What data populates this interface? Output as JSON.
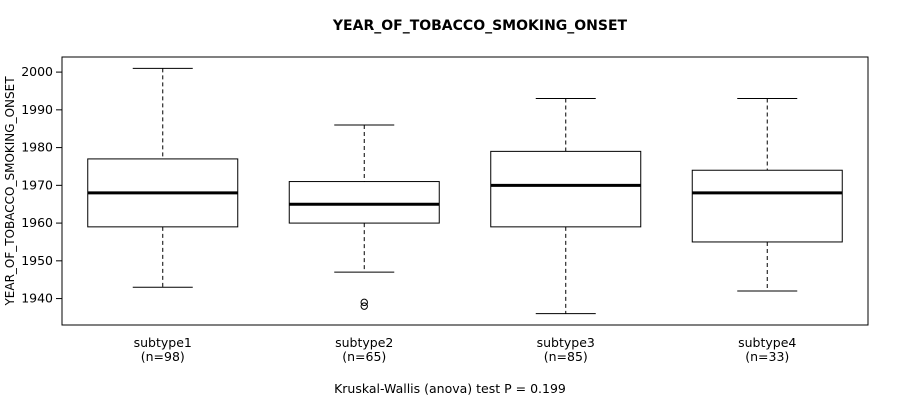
{
  "chart_data": {
    "type": "boxplot",
    "title": "YEAR_OF_TOBACCO_SMOKING_ONSET",
    "ylabel": "YEAR_OF_TOBACCO_SMOKING_ONSET",
    "caption": "Kruskal-Wallis (anova) test P = 0.199",
    "ylim": [
      1933,
      2004
    ],
    "yticks": [
      1940,
      1950,
      1960,
      1970,
      1980,
      1990,
      2000
    ],
    "grid": false,
    "legend": "none",
    "categories": [
      {
        "label": "subtype1",
        "n_label": "(n=98)"
      },
      {
        "label": "subtype2",
        "n_label": "(n=65)"
      },
      {
        "label": "subtype3",
        "n_label": "(n=85)"
      },
      {
        "label": "subtype4",
        "n_label": "(n=33)"
      }
    ],
    "series": [
      {
        "name": "subtype1",
        "low": 1943,
        "q1": 1959,
        "median": 1968,
        "q3": 1977,
        "high": 2001,
        "outliers": []
      },
      {
        "name": "subtype2",
        "low": 1947,
        "q1": 1960,
        "median": 1965,
        "q3": 1971,
        "high": 1986,
        "outliers": [
          1939,
          1938
        ]
      },
      {
        "name": "subtype3",
        "low": 1936,
        "q1": 1959,
        "median": 1970,
        "q3": 1979,
        "high": 1993,
        "outliers": []
      },
      {
        "name": "subtype4",
        "low": 1942,
        "q1": 1955,
        "median": 1968,
        "q3": 1974,
        "high": 1993,
        "outliers": []
      }
    ],
    "colors": {
      "stroke": "#000000",
      "box_fill": "#ffffff",
      "background": "#ffffff"
    }
  }
}
